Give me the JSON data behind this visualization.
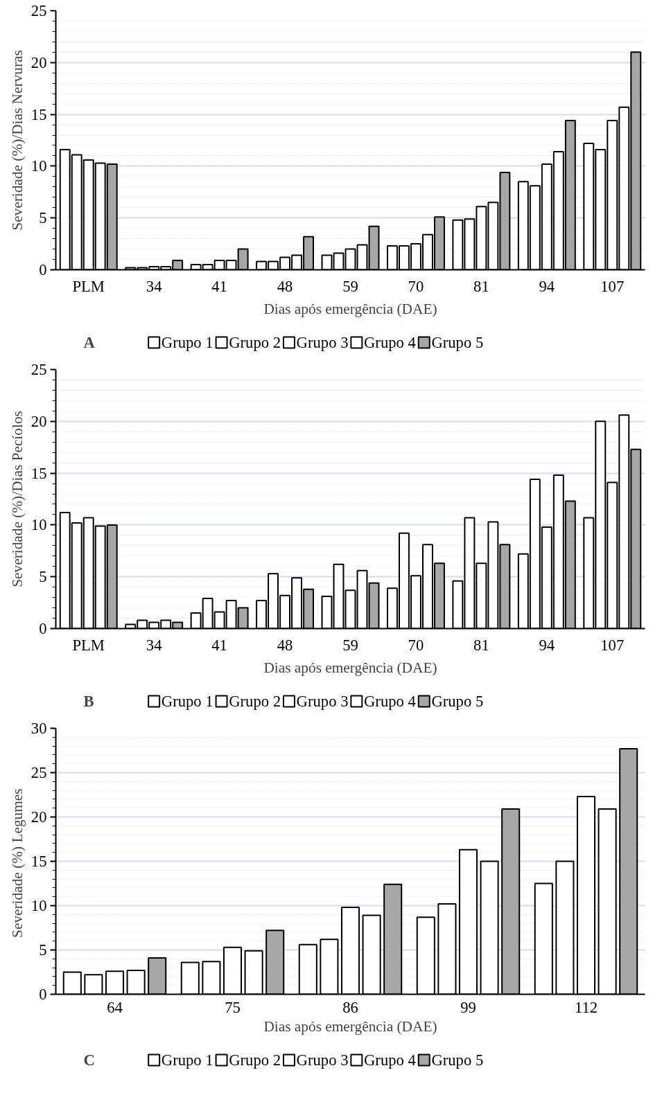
{
  "chart_data": [
    {
      "type": "bar",
      "xlabel": "Dias após emergência (DAE)",
      "ylabel": "Severidade (%)/Dias Nervuras",
      "annotations": [
        "A"
      ],
      "categories": [
        "PLM",
        "34",
        "41",
        "48",
        "59",
        "70",
        "81",
        "94",
        "107"
      ],
      "ylim": [
        0,
        25
      ],
      "yticks": [
        0,
        5,
        10,
        15,
        20,
        25
      ],
      "grid": "y",
      "legend": "bottom",
      "series": [
        {
          "name": "Grupo 1",
          "color": "#ffffff",
          "values": [
            11.6,
            0.2,
            0.5,
            0.8,
            1.4,
            2.3,
            4.8,
            8.5,
            12.2
          ]
        },
        {
          "name": "Grupo 2",
          "color": "#ffffff",
          "values": [
            11.1,
            0.2,
            0.5,
            0.8,
            1.6,
            2.3,
            4.9,
            8.1,
            11.6
          ]
        },
        {
          "name": "Grupo 3",
          "color": "#ffffff",
          "values": [
            10.6,
            0.3,
            0.9,
            1.2,
            2.0,
            2.5,
            6.1,
            10.2,
            14.4
          ]
        },
        {
          "name": "Grupo 4",
          "color": "#ffffff",
          "values": [
            10.3,
            0.3,
            0.9,
            1.4,
            2.4,
            3.4,
            6.5,
            11.4,
            15.7
          ]
        },
        {
          "name": "Grupo 5",
          "color": "#a6a6a6",
          "values": [
            10.2,
            0.9,
            2.0,
            3.2,
            4.2,
            5.1,
            9.4,
            14.4,
            21.0
          ]
        }
      ]
    },
    {
      "type": "bar",
      "xlabel": "Dias após emergência (DAE)",
      "ylabel": "Severidade (%)/Dias Pecíolos",
      "annotations": [
        "B"
      ],
      "categories": [
        "PLM",
        "34",
        "41",
        "48",
        "59",
        "70",
        "81",
        "94",
        "107"
      ],
      "ylim": [
        0,
        25
      ],
      "yticks": [
        0,
        5,
        10,
        15,
        20,
        25
      ],
      "grid": "y",
      "legend": "bottom",
      "series": [
        {
          "name": "Grupo 1",
          "color": "#ffffff",
          "values": [
            11.2,
            0.4,
            1.5,
            2.7,
            3.1,
            3.9,
            4.6,
            7.2,
            10.7
          ]
        },
        {
          "name": "Grupo 2",
          "color": "#ffffff",
          "values": [
            10.2,
            0.8,
            2.9,
            5.3,
            6.2,
            9.2,
            10.7,
            14.4,
            20.0
          ]
        },
        {
          "name": "Grupo 3",
          "color": "#ffffff",
          "values": [
            10.7,
            0.6,
            1.6,
            3.2,
            3.7,
            5.1,
            6.3,
            9.8,
            14.1
          ]
        },
        {
          "name": "Grupo 4",
          "color": "#ffffff",
          "values": [
            9.9,
            0.8,
            2.7,
            4.9,
            5.6,
            8.1,
            10.3,
            14.8,
            20.6
          ]
        },
        {
          "name": "Grupo 5",
          "color": "#a6a6a6",
          "values": [
            10.0,
            0.6,
            2.0,
            3.8,
            4.4,
            6.3,
            8.1,
            12.3,
            17.3
          ]
        }
      ]
    },
    {
      "type": "bar",
      "xlabel": "Dias após emergência (DAE)",
      "ylabel": "Severidade (%)  Legumes",
      "annotations": [
        "C"
      ],
      "categories": [
        "64",
        "75",
        "86",
        "99",
        "112"
      ],
      "ylim": [
        0,
        30
      ],
      "yticks": [
        0,
        5,
        10,
        15,
        20,
        25,
        30
      ],
      "grid": "y",
      "legend": "bottom",
      "series": [
        {
          "name": "Grupo 1",
          "color": "#ffffff",
          "values": [
            2.5,
            3.6,
            5.6,
            8.7,
            12.5
          ]
        },
        {
          "name": "Grupo 2",
          "color": "#ffffff",
          "values": [
            2.2,
            3.7,
            6.2,
            10.2,
            15.0
          ]
        },
        {
          "name": "Grupo 3",
          "color": "#ffffff",
          "values": [
            2.6,
            5.3,
            9.8,
            16.3,
            22.3
          ]
        },
        {
          "name": "Grupo 4",
          "color": "#ffffff",
          "values": [
            2.7,
            4.9,
            8.9,
            15.0,
            20.9
          ]
        },
        {
          "name": "Grupo 5",
          "color": "#a6a6a6",
          "values": [
            4.1,
            7.2,
            12.4,
            20.9,
            27.7
          ]
        }
      ]
    }
  ]
}
